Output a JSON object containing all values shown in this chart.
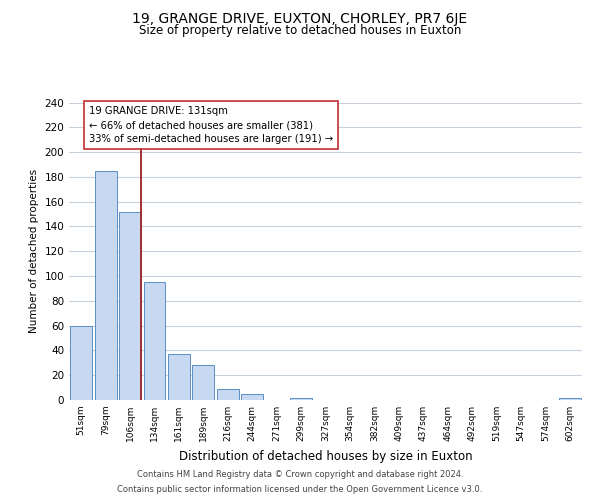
{
  "title": "19, GRANGE DRIVE, EUXTON, CHORLEY, PR7 6JE",
  "subtitle": "Size of property relative to detached houses in Euxton",
  "xlabel": "Distribution of detached houses by size in Euxton",
  "ylabel": "Number of detached properties",
  "bin_labels": [
    "51sqm",
    "79sqm",
    "106sqm",
    "134sqm",
    "161sqm",
    "189sqm",
    "216sqm",
    "244sqm",
    "271sqm",
    "299sqm",
    "327sqm",
    "354sqm",
    "382sqm",
    "409sqm",
    "437sqm",
    "464sqm",
    "492sqm",
    "519sqm",
    "547sqm",
    "574sqm",
    "602sqm"
  ],
  "bar_heights": [
    60,
    185,
    152,
    95,
    37,
    28,
    9,
    5,
    0,
    2,
    0,
    0,
    0,
    0,
    0,
    0,
    0,
    0,
    0,
    0,
    2
  ],
  "bar_color": "#c6d9f0",
  "bar_edge_color": "#5a8fc3",
  "vline_color": "#a02020",
  "annotation_text": "19 GRANGE DRIVE: 131sqm\n← 66% of detached houses are smaller (381)\n33% of semi-detached houses are larger (191) →",
  "annotation_box_color": "white",
  "annotation_box_edge": "#c03030",
  "ylim": [
    0,
    240
  ],
  "yticks": [
    0,
    20,
    40,
    60,
    80,
    100,
    120,
    140,
    160,
    180,
    200,
    220,
    240
  ],
  "footer_line1": "Contains HM Land Registry data © Crown copyright and database right 2024.",
  "footer_line2": "Contains public sector information licensed under the Open Government Licence v3.0.",
  "background_color": "#ffffff",
  "grid_color": "#c8d0dc"
}
